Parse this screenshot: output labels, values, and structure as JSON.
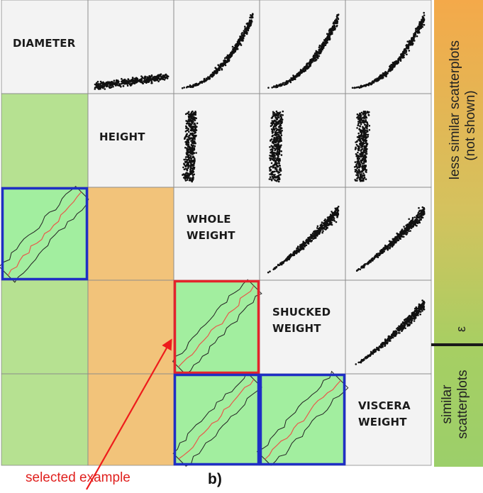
{
  "variables": [
    "DIAMETER",
    "HEIGHT",
    "WHOLE WEIGHT",
    "SHUCKED WEIGHT",
    "VISCERA WEIGHT"
  ],
  "label_lines": [
    [
      "DIAMETER"
    ],
    [
      "HEIGHT"
    ],
    [
      "WHOLE",
      "WEIGHT"
    ],
    [
      "SHUCKED",
      "WEIGHT"
    ],
    [
      "VISCERA",
      "WEIGHT"
    ]
  ],
  "colorbar": {
    "top_text_1": "less similar scatterplots",
    "top_text_2": "(not shown)",
    "epsilon": "ε",
    "bottom_text_1": "similar",
    "bottom_text_2": "scatterplots"
  },
  "annotation": "selected example",
  "panel_label": "b)",
  "colors": {
    "similar": "#b6e191",
    "less_similar": "#f2c37a",
    "contour_fill": "#a2ee9f",
    "selected_box": "#e3242b",
    "shown_box": "#1f2fc4",
    "arrow": "#ee1c1c",
    "median_line": "#e85a4a"
  }
}
